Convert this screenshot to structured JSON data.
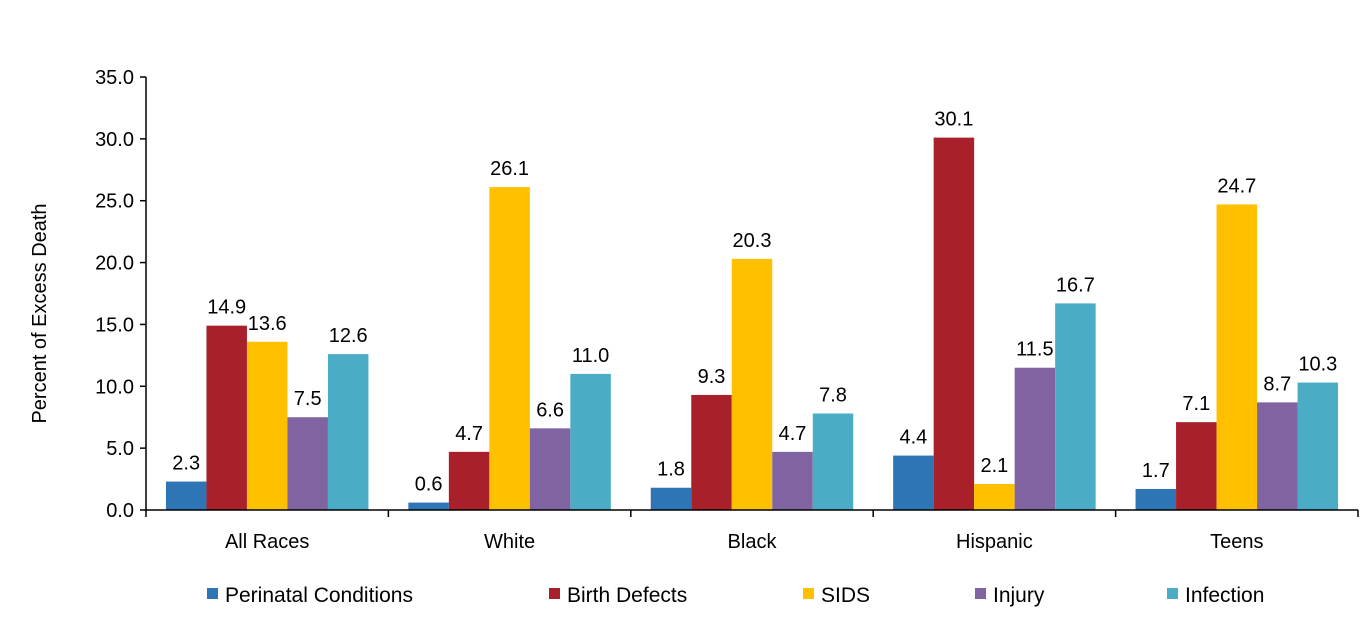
{
  "chart_data": {
    "type": "bar",
    "title": "",
    "xlabel": "",
    "ylabel": "Percent of Excess Death",
    "ylim": [
      0,
      35
    ],
    "yticks": [
      "0.0",
      "5.0",
      "10.0",
      "15.0",
      "20.0",
      "25.0",
      "30.0",
      "35.0"
    ],
    "ytick_values": [
      0,
      5,
      10,
      15,
      20,
      25,
      30,
      35
    ],
    "grid": false,
    "legend_position": "bottom",
    "categories": [
      "All Races",
      "White",
      "Black",
      "Hispanic",
      "Teens"
    ],
    "series": [
      {
        "name": "Perinatal Conditions",
        "color": "#2E75B6",
        "values": [
          2.3,
          0.6,
          1.8,
          4.4,
          1.7
        ],
        "labels": [
          "2.3",
          "0.6",
          "1.8",
          "4.4",
          "1.7"
        ]
      },
      {
        "name": "Birth Defects",
        "color": "#A8202A",
        "values": [
          14.9,
          4.7,
          9.3,
          30.1,
          7.1
        ],
        "labels": [
          "14.9",
          "4.7",
          "9.3",
          "30.1",
          "7.1"
        ]
      },
      {
        "name": "SIDS",
        "color": "#FFC000",
        "values": [
          13.6,
          26.1,
          20.3,
          2.1,
          24.7
        ],
        "labels": [
          "13.6",
          "26.1",
          "20.3",
          "2.1",
          "24.7"
        ]
      },
      {
        "name": "Injury",
        "color": "#8064A2",
        "values": [
          7.5,
          6.6,
          4.7,
          11.5,
          8.7
        ],
        "labels": [
          "7.5",
          "6.6",
          "4.7",
          "11.5",
          "8.7"
        ]
      },
      {
        "name": "Infection",
        "color": "#4BACC6",
        "values": [
          12.6,
          11.0,
          7.8,
          16.7,
          10.3
        ],
        "labels": [
          "12.6",
          "11.0",
          "7.8",
          "16.7",
          "10.3"
        ]
      }
    ]
  }
}
